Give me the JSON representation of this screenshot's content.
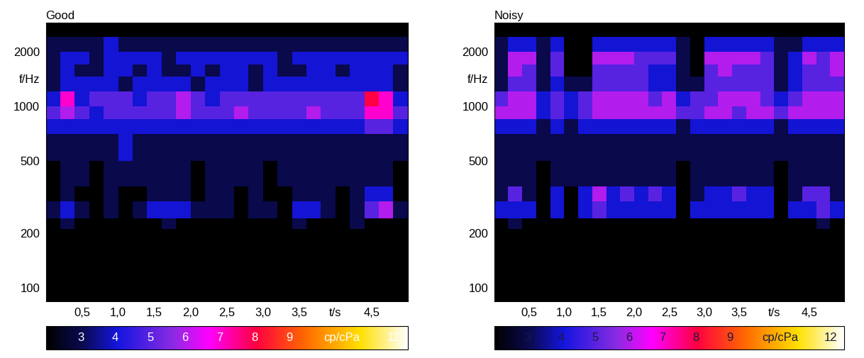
{
  "chart_data": [
    {
      "type": "heatmap",
      "title": "Good",
      "log": "y",
      "xlim": [
        0,
        5.0
      ],
      "ylim": [
        84,
        2870
      ],
      "xticks": [
        {
          "value": 0.5,
          "label": "0,5"
        },
        {
          "value": 1.0,
          "label": "1,0"
        },
        {
          "value": 1.5,
          "label": "1,5"
        },
        {
          "value": 2.0,
          "label": "2,0"
        },
        {
          "value": 2.5,
          "label": "2,5"
        },
        {
          "value": 3.0,
          "label": "3,0"
        },
        {
          "value": 3.5,
          "label": "3,5"
        },
        {
          "value": 4.0,
          "label": "t/s"
        },
        {
          "value": 4.5,
          "label": "4,5"
        }
      ],
      "yticks": [
        100,
        200,
        500,
        1000,
        {
          "value": 1414,
          "label": "f/Hz"
        },
        2000
      ],
      "t_edges": [
        0,
        0.2,
        0.4,
        0.6,
        0.8,
        1.0,
        1.2,
        1.4,
        1.6,
        1.8,
        2.0,
        2.2,
        2.4,
        2.6,
        2.8,
        3.0,
        3.2,
        3.4,
        3.6,
        3.8,
        4.0,
        4.2,
        4.4,
        4.6,
        4.8,
        5.0
      ],
      "f_edges": [
        84,
        210,
        240,
        300,
        360,
        500,
        700,
        850,
        1000,
        1200,
        1450,
        1700,
        2000,
        2400,
        2870
      ],
      "cells": [
        [
          2,
          2,
          2,
          2,
          2,
          2,
          2,
          2,
          2,
          2,
          2,
          2,
          2,
          2,
          2,
          2,
          2,
          2,
          2,
          2,
          2,
          2,
          2,
          2,
          2
        ],
        [
          2,
          3,
          2,
          2,
          2,
          2,
          2,
          2,
          3,
          2,
          2,
          2,
          2,
          2,
          2,
          2,
          2,
          3,
          2,
          2,
          2,
          3,
          2,
          2,
          2
        ],
        [
          3,
          4,
          3,
          2,
          3,
          2,
          3,
          4,
          4,
          4,
          3,
          3,
          3,
          2,
          3,
          3,
          2,
          4,
          4,
          3,
          2,
          3,
          5,
          6,
          3
        ],
        [
          2,
          3,
          2,
          2,
          3,
          2,
          2,
          3,
          3,
          3,
          2,
          3,
          3,
          2,
          3,
          2,
          2,
          3,
          3,
          3,
          2,
          3,
          4,
          4,
          2
        ],
        [
          2,
          3,
          3,
          2,
          3,
          3,
          3,
          3,
          3,
          3,
          2,
          3,
          3,
          3,
          3,
          2,
          3,
          3,
          3,
          3,
          3,
          3,
          3,
          3,
          2
        ],
        [
          3,
          3,
          3,
          3,
          3,
          4,
          3,
          3,
          3,
          3,
          3,
          3,
          3,
          3,
          3,
          3,
          3,
          3,
          3,
          3,
          3,
          3,
          3,
          3,
          3
        ],
        [
          4,
          4,
          4,
          4,
          4,
          4,
          4,
          4,
          4,
          4,
          4,
          4,
          4,
          4,
          4,
          4,
          4,
          4,
          4,
          4,
          4,
          4,
          5,
          5,
          4
        ],
        [
          5,
          6,
          5,
          4,
          5,
          5,
          5,
          5,
          5,
          6,
          5,
          5,
          5,
          6,
          5,
          5,
          5,
          5,
          6,
          5,
          5,
          5,
          7,
          7,
          5
        ],
        [
          4,
          7,
          4,
          5,
          5,
          5,
          4,
          5,
          5,
          6,
          5,
          4,
          5,
          5,
          5,
          5,
          5,
          5,
          5,
          5,
          5,
          5,
          8,
          7,
          4
        ],
        [
          3,
          4,
          4,
          4,
          4,
          3,
          4,
          4,
          4,
          4,
          3,
          4,
          4,
          4,
          3,
          4,
          4,
          4,
          4,
          4,
          4,
          4,
          4,
          4,
          3
        ],
        [
          3,
          4,
          3,
          3,
          4,
          4,
          3,
          4,
          3,
          3,
          4,
          3,
          4,
          4,
          3,
          4,
          3,
          3,
          4,
          4,
          3,
          4,
          4,
          4,
          3
        ],
        [
          3,
          4,
          4,
          3,
          4,
          4,
          4,
          4,
          3,
          4,
          4,
          4,
          4,
          4,
          4,
          4,
          3,
          4,
          4,
          4,
          4,
          4,
          4,
          4,
          4
        ],
        [
          3,
          3,
          3,
          3,
          4,
          3,
          3,
          3,
          3,
          3,
          3,
          3,
          3,
          3,
          3,
          3,
          3,
          3,
          3,
          3,
          3,
          3,
          3,
          3,
          3
        ],
        [
          2,
          2,
          2,
          2,
          2,
          2,
          2,
          2,
          2,
          2,
          2,
          2,
          2,
          2,
          2,
          2,
          2,
          2,
          2,
          2,
          2,
          2,
          2,
          2,
          2
        ]
      ],
      "colorbar_range": [
        2,
        12.4
      ],
      "colorbar_ticks": [
        3,
        4,
        5,
        6,
        7,
        8,
        9,
        {
          "value": 10.5,
          "label": "cp/cPa"
        },
        12
      ]
    },
    {
      "type": "heatmap",
      "title": "Noisy",
      "log": "y",
      "xlim": [
        0,
        5.0
      ],
      "ylim": [
        84,
        2870
      ],
      "xticks": [
        {
          "value": 0.5,
          "label": "0,5"
        },
        {
          "value": 1.0,
          "label": "1,0"
        },
        {
          "value": 1.5,
          "label": "1,5"
        },
        {
          "value": 2.0,
          "label": "2,0"
        },
        {
          "value": 2.5,
          "label": "2,5"
        },
        {
          "value": 3.0,
          "label": "3,0"
        },
        {
          "value": 3.5,
          "label": "3,5"
        },
        {
          "value": 4.0,
          "label": "t/s"
        },
        {
          "value": 4.5,
          "label": "4,5"
        }
      ],
      "yticks": [
        100,
        200,
        500,
        1000,
        {
          "value": 1414,
          "label": "f/Hz"
        },
        2000
      ],
      "t_edges": [
        0,
        0.2,
        0.4,
        0.6,
        0.8,
        1.0,
        1.2,
        1.4,
        1.6,
        1.8,
        2.0,
        2.2,
        2.4,
        2.6,
        2.8,
        3.0,
        3.2,
        3.4,
        3.6,
        3.8,
        4.0,
        4.2,
        4.4,
        4.6,
        4.8,
        5.0
      ],
      "f_edges": [
        84,
        210,
        240,
        300,
        360,
        500,
        700,
        850,
        1000,
        1200,
        1450,
        1700,
        2000,
        2400,
        2870
      ],
      "cells": [
        [
          2,
          2,
          2,
          2,
          2,
          2,
          2,
          2,
          2,
          2,
          2,
          2,
          2,
          2,
          2,
          2,
          2,
          2,
          2,
          2,
          2,
          2,
          2,
          2,
          2
        ],
        [
          2,
          3,
          2,
          2,
          2,
          2,
          2,
          2,
          2,
          2,
          2,
          2,
          2,
          2,
          2,
          2,
          2,
          2,
          2,
          2,
          2,
          2,
          2,
          3,
          2
        ],
        [
          4,
          4,
          4,
          2,
          4,
          2,
          4,
          5,
          4,
          4,
          4,
          4,
          4,
          2,
          4,
          4,
          4,
          4,
          4,
          4,
          2,
          4,
          4,
          5,
          4
        ],
        [
          3,
          5,
          3,
          2,
          4,
          2,
          4,
          6,
          4,
          5,
          4,
          5,
          4,
          2,
          3,
          4,
          4,
          5,
          4,
          4,
          2,
          3,
          5,
          5,
          3
        ],
        [
          3,
          3,
          3,
          2,
          3,
          3,
          3,
          3,
          3,
          3,
          3,
          3,
          3,
          2,
          3,
          3,
          3,
          3,
          3,
          3,
          2,
          3,
          3,
          3,
          3
        ],
        [
          3,
          3,
          3,
          3,
          3,
          3,
          3,
          3,
          3,
          3,
          3,
          3,
          3,
          3,
          3,
          3,
          3,
          3,
          3,
          3,
          3,
          3,
          3,
          3,
          3
        ],
        [
          4,
          4,
          4,
          3,
          4,
          3,
          4,
          4,
          4,
          4,
          4,
          4,
          4,
          3,
          4,
          4,
          4,
          4,
          4,
          4,
          3,
          4,
          4,
          4,
          4
        ],
        [
          6,
          6,
          6,
          4,
          5,
          4,
          5,
          6,
          6,
          6,
          6,
          6,
          6,
          5,
          5,
          6,
          6,
          5,
          6,
          6,
          5,
          6,
          6,
          6,
          6
        ],
        [
          5,
          6,
          6,
          4,
          5,
          4,
          5,
          6,
          6,
          6,
          6,
          5,
          6,
          4,
          5,
          5,
          6,
          6,
          6,
          5,
          4,
          5,
          6,
          6,
          6
        ],
        [
          3,
          5,
          5,
          3,
          4,
          3,
          3,
          5,
          5,
          5,
          5,
          4,
          4,
          3,
          3,
          5,
          5,
          5,
          5,
          5,
          3,
          4,
          5,
          5,
          5
        ],
        [
          3,
          6,
          5,
          3,
          5,
          2,
          2,
          5,
          5,
          5,
          5,
          4,
          4,
          3,
          2,
          5,
          6,
          5,
          5,
          5,
          3,
          4,
          5,
          5,
          6
        ],
        [
          3,
          6,
          6,
          3,
          5,
          2,
          2,
          6,
          6,
          6,
          5,
          5,
          5,
          3,
          2,
          6,
          6,
          6,
          6,
          5,
          3,
          4,
          6,
          5,
          6
        ],
        [
          3,
          4,
          4,
          3,
          4,
          2,
          2,
          4,
          4,
          4,
          4,
          4,
          4,
          3,
          2,
          4,
          4,
          4,
          4,
          4,
          3,
          3,
          4,
          4,
          4
        ],
        [
          2,
          2,
          2,
          2,
          2,
          2,
          2,
          2,
          2,
          2,
          2,
          2,
          2,
          2,
          2,
          2,
          2,
          2,
          2,
          2,
          2,
          2,
          2,
          2,
          2
        ]
      ],
      "colorbar_range": [
        2,
        12.4
      ],
      "colorbar_ticks": [
        3,
        4,
        5,
        6,
        7,
        8,
        9,
        {
          "value": 10.5,
          "label": "cp/cPa"
        },
        12
      ]
    }
  ]
}
